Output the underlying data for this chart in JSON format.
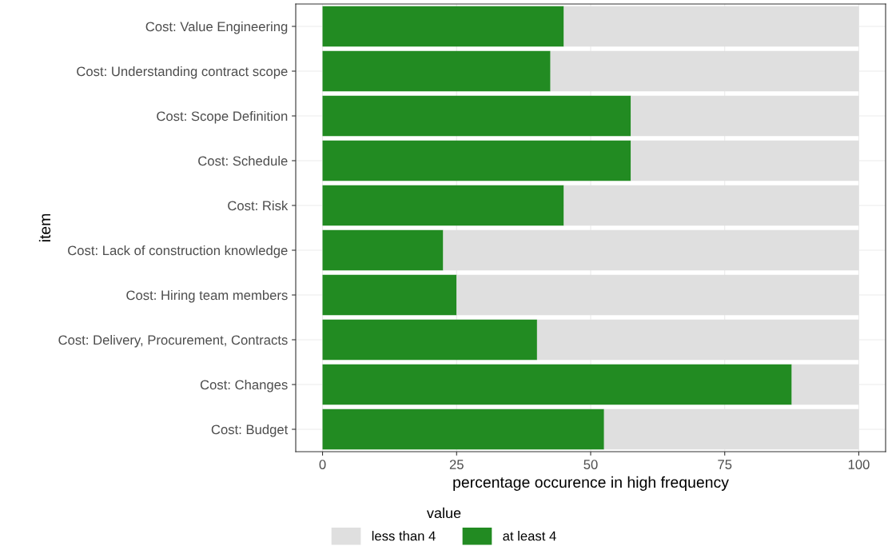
{
  "chart_data": {
    "type": "bar",
    "orientation": "horizontal",
    "stacked": true,
    "xlabel": "percentage occurence in high frequency",
    "ylabel": "item",
    "legend_title": "value",
    "categories": [
      "Cost: Value Engineering",
      "Cost: Understanding contract scope",
      "Cost: Scope Definition",
      "Cost: Schedule",
      "Cost: Risk",
      "Cost: Lack of construction knowledge",
      "Cost: Hiring team members",
      "Cost: Delivery, Procurement, Contracts",
      "Cost: Changes",
      "Cost: Budget"
    ],
    "series": [
      {
        "name": "at least 4",
        "color": "#228b22",
        "values": [
          45,
          42.5,
          57.5,
          57.5,
          45,
          22.5,
          25,
          40,
          87.5,
          52.5
        ]
      },
      {
        "name": "less than 4",
        "color": "#dfdfdf",
        "values": [
          55,
          57.5,
          42.5,
          42.5,
          55,
          77.5,
          75,
          60,
          12.5,
          47.5
        ]
      }
    ],
    "xlim": [
      -5,
      105
    ],
    "xticks": [
      0,
      25,
      50,
      75,
      100
    ],
    "grid": true,
    "legend": "bottom"
  }
}
